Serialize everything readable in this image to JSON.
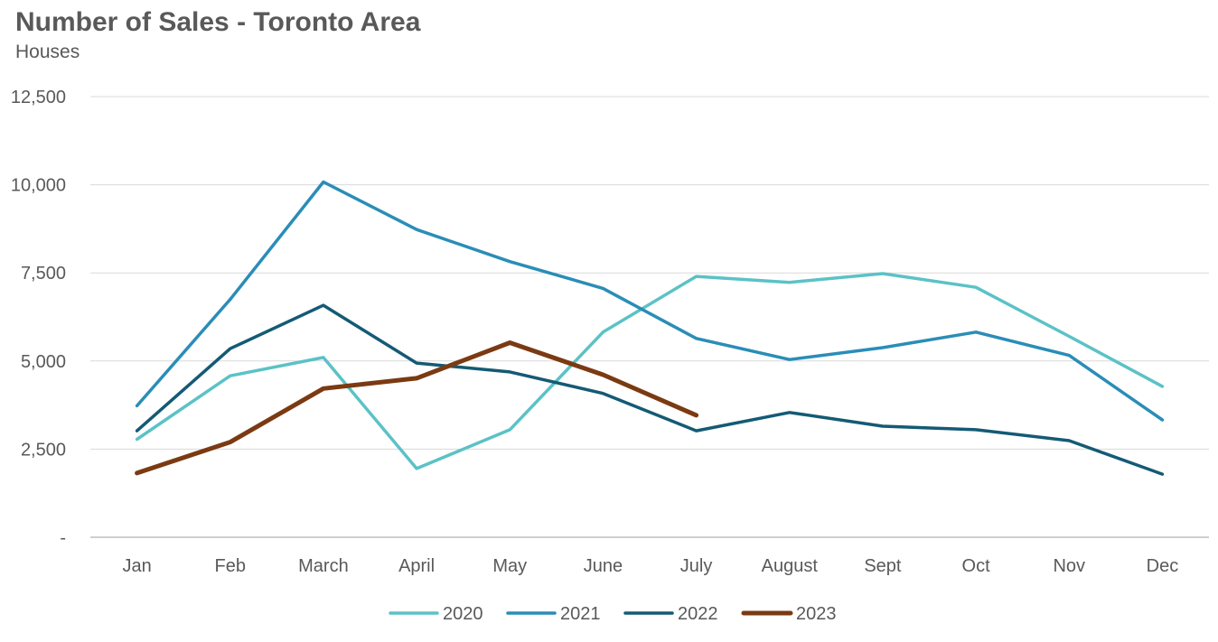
{
  "chart_data": {
    "type": "line",
    "title": "Number of Sales - Toronto Area",
    "subtitle": "Houses",
    "xlabel": "",
    "ylabel": "",
    "categories": [
      "Jan",
      "Feb",
      "March",
      "April",
      "May",
      "June",
      "July",
      "August",
      "Sept",
      "Oct",
      "Nov",
      "Dec"
    ],
    "ylim": [
      0,
      12500
    ],
    "yticks": [
      0,
      2500,
      5000,
      7500,
      10000,
      12500
    ],
    "ytick_labels": [
      "-",
      "2,500",
      "5,000",
      "7,500",
      "10,000",
      "12,500"
    ],
    "grid": true,
    "legend_position": "bottom",
    "series": [
      {
        "name": "2020",
        "color": "#5bc2c6",
        "values": [
          2780,
          4580,
          5100,
          1950,
          3050,
          5820,
          7400,
          7230,
          7480,
          7090,
          5700,
          4280
        ]
      },
      {
        "name": "2021",
        "color": "#2a8db7",
        "values": [
          3730,
          6750,
          10080,
          8730,
          7820,
          7060,
          5640,
          5040,
          5380,
          5820,
          5160,
          3330
        ]
      },
      {
        "name": "2022",
        "color": "#145a75",
        "values": [
          3020,
          5350,
          6580,
          4940,
          4690,
          4080,
          3020,
          3540,
          3150,
          3050,
          2740,
          1790
        ]
      },
      {
        "name": "2023",
        "color": "#7b3a12",
        "values": [
          1820,
          2700,
          4220,
          4510,
          5520,
          4610,
          3460,
          null,
          null,
          null,
          null,
          null
        ]
      }
    ]
  }
}
